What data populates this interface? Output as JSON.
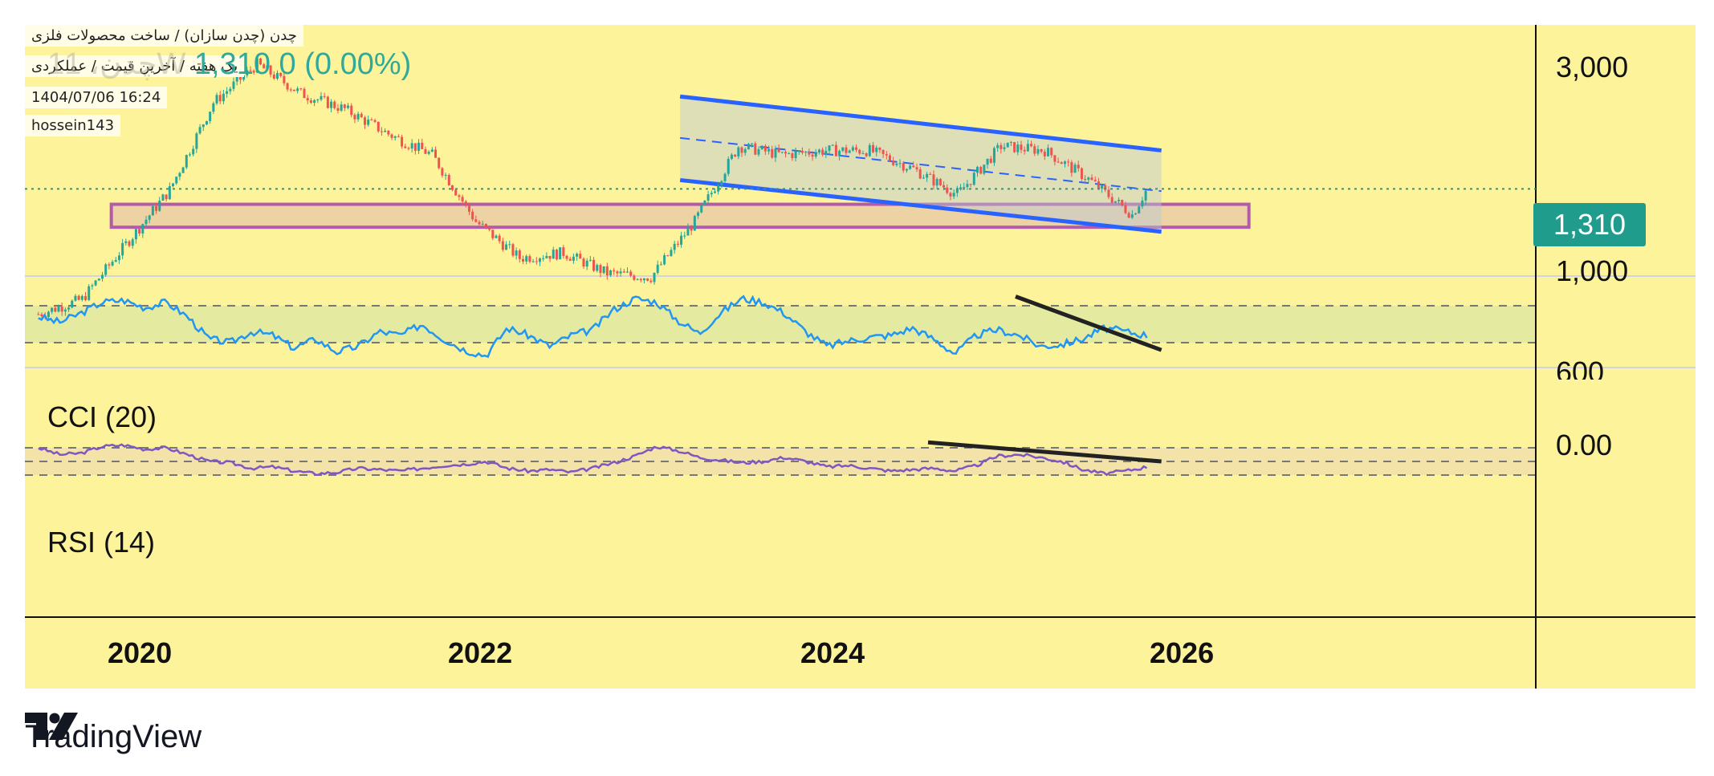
{
  "header": {
    "symbol_line": "چدن (چدن سازان) / ساخت محصولات فلزی",
    "interval_line": "یک هفته / آخرین قیمت / عملکردی",
    "datetime": "1404/07/06 16:24",
    "author": "hossein143",
    "ghost_ticker": "1چدن، 1W",
    "price": "1,310",
    "change": "0 (0.00%)"
  },
  "brand": {
    "name": "TradingView"
  },
  "colors": {
    "background": "#fdf39b",
    "up_candle": "#26a69a",
    "down_candle": "#ef5350",
    "channel": "#2962ff",
    "zone_border": "#9c27b0",
    "cci_line": "#2196f3",
    "rsi_line": "#7e57c2",
    "trendline": "#222222",
    "price_tag": "#1f9c8c"
  },
  "chart_data": [
    {
      "type": "candlestick",
      "pane": "price",
      "interval": "1W",
      "scale": "log",
      "x": [
        "2019-06",
        "2019-09",
        "2019-12",
        "2020-03",
        "2020-06",
        "2020-09",
        "2020-12",
        "2021-03",
        "2021-06",
        "2021-09",
        "2021-12",
        "2022-03",
        "2022-06",
        "2022-09",
        "2022-12",
        "2023-03",
        "2023-06",
        "2023-09",
        "2023-12",
        "2024-03",
        "2024-06",
        "2024-09",
        "2024-12",
        "2025-03",
        "2025-06",
        "2025-09",
        "2025-10"
      ],
      "close": [
        560,
        620,
        900,
        1300,
        2350,
        3050,
        2500,
        2250,
        1900,
        1650,
        1050,
        820,
        850,
        740,
        720,
        1050,
        1750,
        1650,
        1700,
        1700,
        1500,
        1260,
        1750,
        1700,
        1400,
        1100,
        1310
      ],
      "last_price": "1,310",
      "y_ticks": [
        "3,000",
        "1,000",
        "600"
      ],
      "current_price_line": 1310,
      "drawings": {
        "support_zone": {
          "low": 1010,
          "high": 1180,
          "from": "2019-11",
          "to": "2026-05"
        },
        "descending_channel": {
          "upper": [
            [
              "2023-02",
              2450
            ],
            [
              "2025-11",
              1700
            ]
          ],
          "lower": [
            [
              "2023-02",
              1390
            ],
            [
              "2025-11",
              980
            ]
          ],
          "mid": [
            [
              "2023-02",
              1850
            ],
            [
              "2025-11",
              1290
            ]
          ]
        }
      }
    },
    {
      "type": "line",
      "pane": "oscillator",
      "series": [
        {
          "name": "CCI (20)"
        }
      ],
      "y_ticks": [
        "0.00"
      ],
      "band": [
        -100,
        100
      ],
      "values": [
        40,
        10,
        60,
        120,
        130,
        90,
        120,
        40,
        -80,
        -100,
        -40,
        -60,
        -130,
        -80,
        -150,
        -120,
        -40,
        -60,
        0,
        -80,
        -140,
        -170,
        -20,
        -60,
        -120,
        -60,
        -30,
        80,
        140,
        120,
        20,
        -50,
        60,
        140,
        120,
        60,
        -40,
        -120,
        -90,
        -70,
        -60,
        -20,
        -80,
        -160,
        -60,
        -30,
        -60,
        -120,
        -110,
        -80,
        -20,
        -40,
        -60
      ],
      "trendline": [
        [
          "2025-01",
          150
        ],
        [
          "2025-11",
          -140
        ]
      ]
    },
    {
      "type": "line",
      "pane": "oscillator",
      "series": [
        {
          "name": "RSI (14)"
        }
      ],
      "band": [
        30,
        70
      ],
      "values": [
        70,
        60,
        62,
        72,
        74,
        68,
        70,
        60,
        50,
        48,
        40,
        42,
        36,
        32,
        34,
        40,
        38,
        36,
        40,
        44,
        46,
        50,
        40,
        36,
        38,
        34,
        40,
        48,
        58,
        72,
        66,
        56,
        52,
        48,
        50,
        56,
        50,
        42,
        44,
        40,
        36,
        38,
        40,
        36,
        44,
        58,
        60,
        56,
        50,
        38,
        32,
        36,
        42
      ],
      "trendline": [
        [
          "2024-07",
          78
        ],
        [
          "2025-11",
          50
        ]
      ]
    }
  ],
  "x_axis": {
    "labels": [
      "2020",
      "2022",
      "2024",
      "2026"
    ]
  }
}
